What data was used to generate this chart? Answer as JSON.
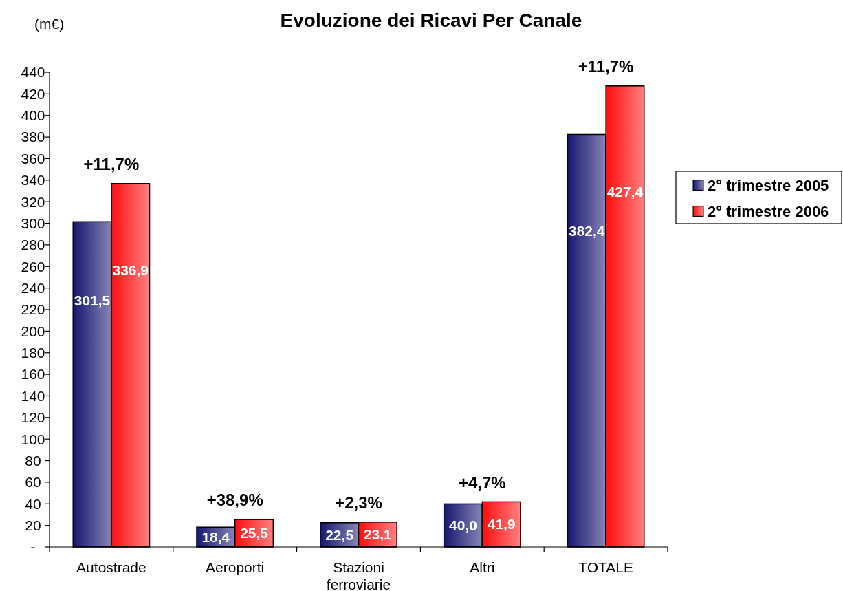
{
  "chart_data": {
    "type": "bar",
    "title": "Evoluzione dei Ricavi Per Canale",
    "ylabel": "(m€)",
    "categories": [
      "Autostrade",
      "Aeroporti",
      "Stazioni ferroviarie",
      "Altri",
      "TOTALE"
    ],
    "series": [
      {
        "name": "2° trimestre 2005",
        "color": "#161672",
        "values": [
          301.5,
          18.4,
          22.5,
          40.0,
          382.4
        ],
        "value_labels": [
          "301,5",
          "18,4",
          "22,5",
          "40,0",
          "382,4"
        ]
      },
      {
        "name": "2° trimestre 2006",
        "color": "#ff0d0d",
        "values": [
          336.9,
          25.5,
          23.1,
          41.9,
          427.4
        ],
        "value_labels": [
          "336,9",
          "25,5",
          "23,1",
          "41,9",
          "427,4"
        ]
      }
    ],
    "ylim": [
      0,
      440
    ],
    "yticks": [
      {
        "value": 0,
        "label": "-"
      },
      20,
      40,
      60,
      80,
      100,
      120,
      140,
      160,
      180,
      200,
      220,
      240,
      260,
      280,
      300,
      320,
      340,
      360,
      380,
      400,
      420,
      440
    ],
    "legend": "right",
    "annotations": [
      "+11,7%",
      "+38,9%",
      "+2,3%",
      "+4,7%",
      "+11,7%"
    ]
  }
}
